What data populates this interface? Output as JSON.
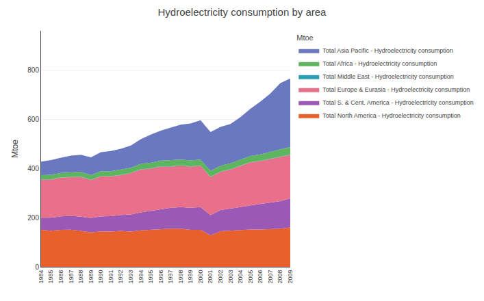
{
  "chart_data": {
    "type": "area",
    "stacked": true,
    "title": "Hydroelectricity consumption by area",
    "ylabel": "Mtoe",
    "legend_title": "Mtoe",
    "legend": "right",
    "grid": true,
    "x": [
      1984,
      1985,
      1986,
      1987,
      1988,
      1989,
      1990,
      1991,
      1992,
      1993,
      1994,
      1995,
      1996,
      1997,
      1998,
      1999,
      2000,
      2001,
      2002,
      2003,
      2004,
      2005,
      2006,
      2007,
      2008,
      2009
    ],
    "xlim": [
      1984,
      2009
    ],
    "xticks": [
      1984,
      1985,
      1986,
      1987,
      1988,
      1989,
      1990,
      1991,
      1992,
      1993,
      1994,
      1995,
      1996,
      1997,
      1998,
      1999,
      2000,
      2001,
      2002,
      2003,
      2004,
      2005,
      2006,
      2007,
      2008,
      2009
    ],
    "ylim": [
      0,
      960
    ],
    "yticks": [
      0,
      200,
      400,
      600,
      800
    ],
    "series": [
      {
        "name": "Total North America - Hydroelectricity consumption",
        "color": "#E8602C",
        "values": [
          150,
          147,
          150,
          151,
          146,
          140,
          144,
          143,
          146,
          143,
          148,
          151,
          153,
          155,
          155,
          150,
          150,
          128,
          145,
          148,
          150,
          152,
          152,
          153,
          155,
          160
        ]
      },
      {
        "name": "Total S. & Cent. America - Hydroelectricity consumption",
        "color": "#9B59B6",
        "values": [
          50,
          53,
          55,
          56,
          58,
          58,
          61,
          63,
          65,
          70,
          73,
          76,
          80,
          85,
          88,
          90,
          93,
          82,
          86,
          88,
          93,
          98,
          103,
          108,
          112,
          118
        ]
      },
      {
        "name": "Total Europe & Eurasia - Hydroelectricity consumption",
        "color": "#E8708A",
        "values": [
          155,
          155,
          158,
          158,
          162,
          155,
          163,
          162,
          162,
          168,
          175,
          172,
          175,
          168,
          168,
          168,
          168,
          155,
          155,
          160,
          168,
          175,
          175,
          178,
          182,
          178
        ]
      },
      {
        "name": "Total Middle East - Hydroelectricity consumption",
        "color": "#2BA0B4",
        "values": [
          1,
          1,
          1,
          1,
          1,
          1,
          1,
          1,
          1,
          1,
          1,
          1,
          1,
          1,
          1,
          1,
          1,
          1,
          1,
          1,
          1,
          1,
          1,
          1,
          1,
          1
        ]
      },
      {
        "name": "Total Africa - Hydroelectricity consumption",
        "color": "#5DB55D",
        "values": [
          17,
          18,
          18,
          19,
          19,
          19,
          20,
          20,
          21,
          21,
          22,
          23,
          23,
          24,
          24,
          24,
          24,
          24,
          24,
          24,
          25,
          25,
          26,
          27,
          29,
          31
        ]
      },
      {
        "name": "Total Asia Pacific - Hydroelectricity consumption",
        "color": "#6A78BF",
        "values": [
          55,
          60,
          62,
          67,
          70,
          72,
          77,
          82,
          85,
          90,
          100,
          115,
          122,
          132,
          142,
          150,
          160,
          158,
          158,
          160,
          172,
          192,
          215,
          238,
          268,
          278
        ]
      }
    ]
  }
}
